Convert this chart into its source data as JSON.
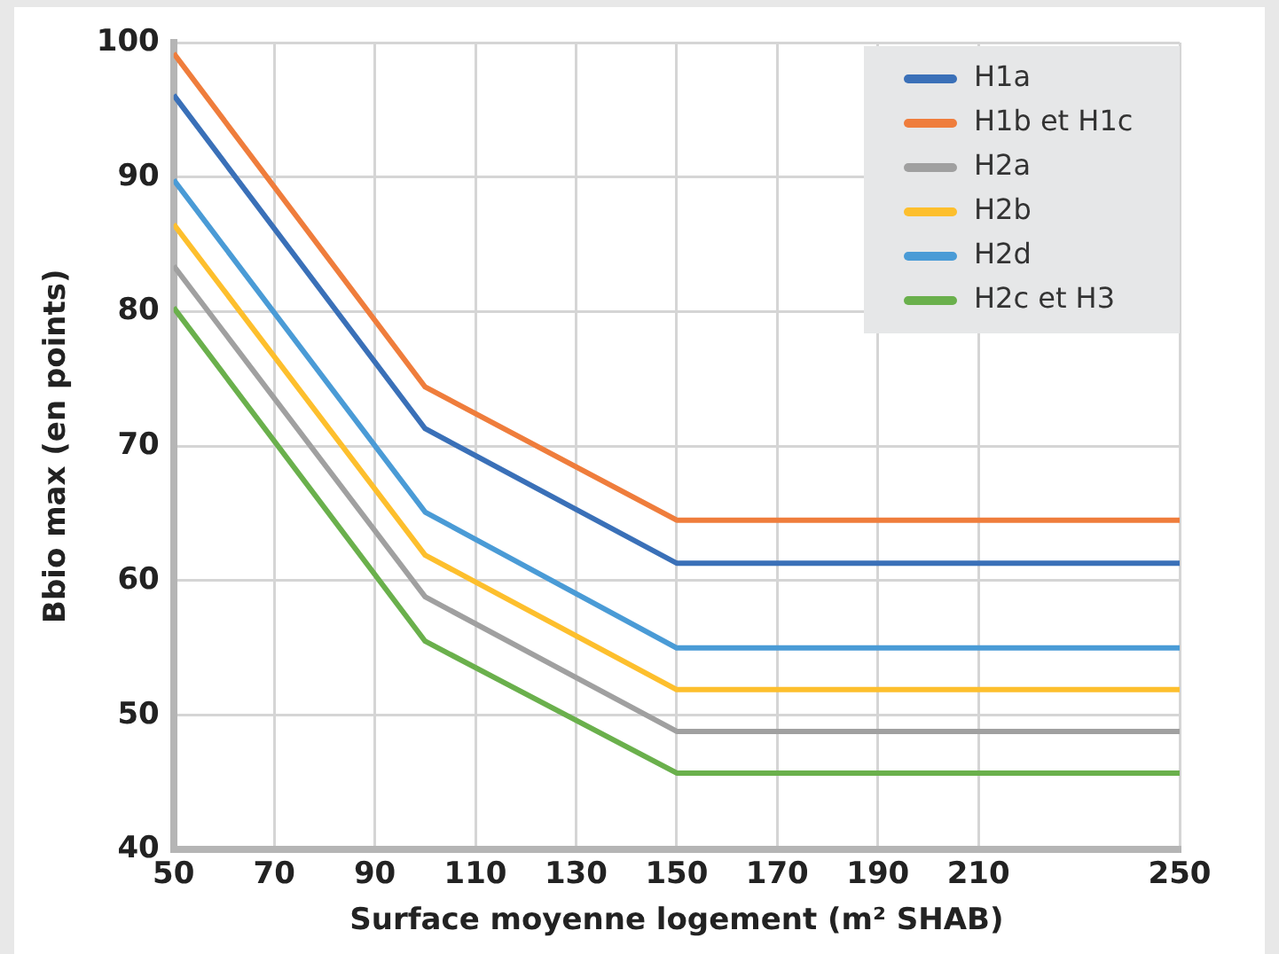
{
  "chart_data": {
    "type": "line",
    "xlabel": "Surface moyenne logement (m² SHAB)",
    "ylabel": "Bbio max (en points)",
    "xlim": [
      50,
      250
    ],
    "xticks": [
      50,
      70,
      90,
      110,
      130,
      150,
      170,
      190,
      210,
      250
    ],
    "ylim": [
      40,
      100
    ],
    "yticks": [
      40,
      50,
      60,
      70,
      80,
      90,
      100
    ],
    "grid": true,
    "legend": "top right",
    "marker": "none",
    "line_style": "solid",
    "x": [
      50,
      100,
      150,
      250
    ],
    "series": [
      {
        "name": "H1a",
        "color": "#3a70b8",
        "values": [
          96.1,
          71.3,
          61.3,
          61.3
        ]
      },
      {
        "name": "H1b et H1c",
        "color": "#ef7d3c",
        "values": [
          99.2,
          74.4,
          64.5,
          64.5
        ]
      },
      {
        "name": "H2a",
        "color": "#a0a0a0",
        "values": [
          83.4,
          58.8,
          48.8,
          48.8
        ]
      },
      {
        "name": "H2b",
        "color": "#fdbf2d",
        "values": [
          86.5,
          61.9,
          51.9,
          51.9
        ]
      },
      {
        "name": "H2d",
        "color": "#4a9bd6",
        "values": [
          89.8,
          65.1,
          55.0,
          55.0
        ]
      },
      {
        "name": "H2c et H3",
        "color": "#6ab04c",
        "values": [
          80.3,
          55.5,
          45.7,
          45.7
        ]
      }
    ]
  }
}
